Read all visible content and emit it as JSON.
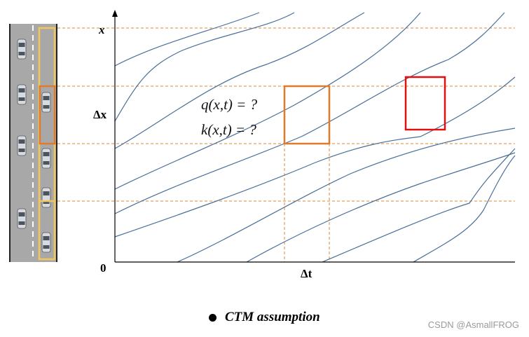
{
  "axes": {
    "y_top_label": "x",
    "y_mid_label": "Δx",
    "origin_label": "0",
    "x_label": "Δt"
  },
  "equations": {
    "line1": "q(x,t) = ?",
    "line2": "k(x,t) = ?"
  },
  "legend": {
    "text": "CTM assumption"
  },
  "watermark": "CSDN @AsmallFROG",
  "colors": {
    "trajectory": "#4a6f98",
    "guide_dashed": "#d98a3a",
    "cell_box": "#e07b2c",
    "highlight_box": "#e01010",
    "road": "#a8a8a8",
    "road_edge": "#222222",
    "road_segment": "#f2c65a"
  }
}
